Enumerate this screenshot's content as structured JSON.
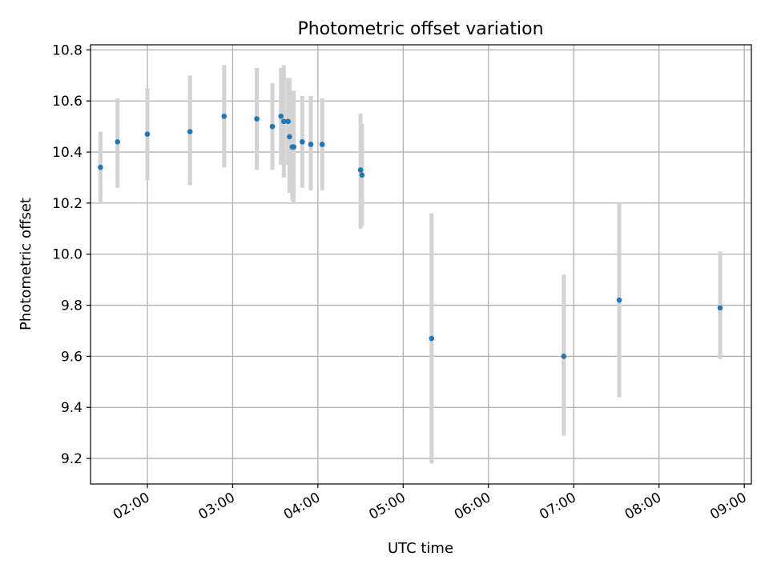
{
  "chart_data": {
    "type": "scatter",
    "title": "Photometric offset variation",
    "xlabel": "UTC time",
    "ylabel": "Photometric offset",
    "x_range": [
      "01:20",
      "09:05"
    ],
    "ylim": [
      9.1,
      10.82
    ],
    "grid": true,
    "x_ticks": [
      "02:00",
      "03:00",
      "04:00",
      "05:00",
      "06:00",
      "07:00",
      "08:00",
      "09:00"
    ],
    "y_ticks": [
      "9.2",
      "9.4",
      "9.6",
      "9.8",
      "10.0",
      "10.2",
      "10.4",
      "10.6",
      "10.8"
    ],
    "colors": {
      "point": "#1f77b4",
      "errorbar": "#d3d3d3",
      "grid": "#b0b0b0"
    },
    "points": [
      {
        "x": "01:27",
        "y": 10.34,
        "low": 10.2,
        "high": 10.48
      },
      {
        "x": "01:39",
        "y": 10.44,
        "low": 10.26,
        "high": 10.61
      },
      {
        "x": "02:00",
        "y": 10.47,
        "low": 10.29,
        "high": 10.65
      },
      {
        "x": "02:30",
        "y": 10.48,
        "low": 10.27,
        "high": 10.7
      },
      {
        "x": "02:54",
        "y": 10.54,
        "low": 10.34,
        "high": 10.74
      },
      {
        "x": "03:17",
        "y": 10.53,
        "low": 10.33,
        "high": 10.73
      },
      {
        "x": "03:28",
        "y": 10.5,
        "low": 10.33,
        "high": 10.67
      },
      {
        "x": "03:34",
        "y": 10.54,
        "low": 10.35,
        "high": 10.73
      },
      {
        "x": "03:36",
        "y": 10.52,
        "low": 10.3,
        "high": 10.74
      },
      {
        "x": "03:39",
        "y": 10.52,
        "low": 10.35,
        "high": 10.69
      },
      {
        "x": "03:40",
        "y": 10.46,
        "low": 10.24,
        "high": 10.69
      },
      {
        "x": "03:42",
        "y": 10.42,
        "low": 10.21,
        "high": 10.64
      },
      {
        "x": "03:43",
        "y": 10.42,
        "low": 10.2,
        "high": 10.64
      },
      {
        "x": "03:49",
        "y": 10.44,
        "low": 10.26,
        "high": 10.62
      },
      {
        "x": "03:55",
        "y": 10.43,
        "low": 10.25,
        "high": 10.62
      },
      {
        "x": "04:03",
        "y": 10.43,
        "low": 10.25,
        "high": 10.61
      },
      {
        "x": "04:30",
        "y": 10.33,
        "low": 10.1,
        "high": 10.55
      },
      {
        "x": "04:31",
        "y": 10.31,
        "low": 10.11,
        "high": 10.51
      },
      {
        "x": "05:20",
        "y": 9.67,
        "low": 9.18,
        "high": 10.16
      },
      {
        "x": "06:53",
        "y": 9.6,
        "low": 9.29,
        "high": 9.92
      },
      {
        "x": "07:32",
        "y": 9.82,
        "low": 9.44,
        "high": 10.2
      },
      {
        "x": "08:43",
        "y": 9.79,
        "low": 9.59,
        "high": 10.01
      }
    ]
  }
}
